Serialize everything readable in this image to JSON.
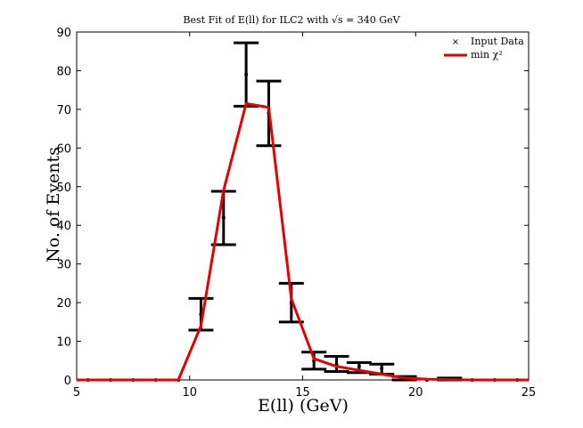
{
  "chart_data": {
    "type": "line",
    "title": "Best Fit of E(ll) for ILC2 with √s = 340 GeV",
    "xlabel": "E(ll) (GeV)",
    "ylabel": "No. of Events",
    "xlim": [
      5,
      25
    ],
    "ylim": [
      0,
      90
    ],
    "xticks": [
      5,
      10,
      15,
      20,
      25
    ],
    "yticks": [
      0,
      10,
      20,
      30,
      40,
      50,
      60,
      70,
      80,
      90
    ],
    "grid": false,
    "legend_position": "top-right",
    "series": [
      {
        "name": "Input Data",
        "style": "points-with-errorbars",
        "color": "#000000",
        "x": [
          5.5,
          6.5,
          7.5,
          8.5,
          9.5,
          10.5,
          11.5,
          12.5,
          13.5,
          14.5,
          15.5,
          16.5,
          17.5,
          18.5,
          19.5,
          20.5,
          21.5,
          22.5,
          23.5,
          24.5
        ],
        "y": [
          0,
          0,
          0,
          0,
          0,
          17,
          42,
          79,
          69,
          20,
          5,
          4,
          3.5,
          3,
          0.5,
          0,
          0.3,
          0,
          0,
          0
        ],
        "yerr_low": [
          0,
          0,
          0,
          0,
          0,
          12.9,
          35.0,
          70.8,
          60.6,
          15.0,
          2.8,
          2.2,
          1.9,
          1.5,
          0,
          0,
          0,
          0,
          0,
          0
        ],
        "yerr_high": [
          0,
          0,
          0,
          0,
          0,
          21.1,
          48.8,
          87.2,
          77.3,
          25.0,
          7.2,
          6.1,
          4.5,
          4.1,
          0.9,
          0,
          0.5,
          0,
          0,
          0
        ]
      },
      {
        "name": "min χ²",
        "style": "line",
        "color": "#e60000",
        "x": [
          5,
          6,
          7,
          8,
          9,
          9.5,
          10.5,
          11.5,
          12.5,
          13.5,
          14.5,
          15.5,
          16.5,
          17.5,
          18.5,
          19.5,
          20.5,
          21.5,
          22.5,
          23.5,
          24.5,
          25
        ],
        "y": [
          0,
          0,
          0,
          0,
          0,
          0,
          14,
          49,
          71.5,
          70.5,
          21,
          5.5,
          3.5,
          2.5,
          1.5,
          0.5,
          0.2,
          0.1,
          0,
          0,
          0,
          0
        ]
      }
    ]
  }
}
